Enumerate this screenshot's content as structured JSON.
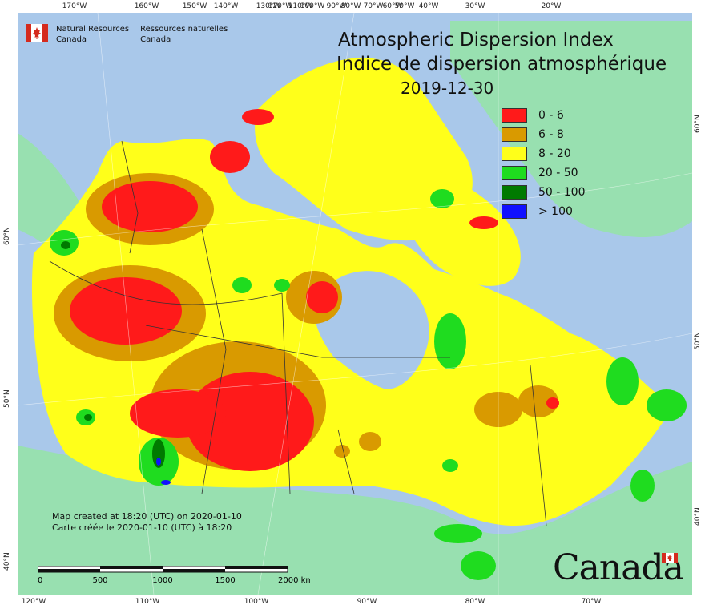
{
  "map": {
    "title_en": "Atmospheric Dispersion Index",
    "title_fr": "Indice de dispersion atmosphérique",
    "date": "2019-12-30",
    "legend": [
      {
        "label": "0 - 6",
        "color": "#ff1a1a"
      },
      {
        "label": "6 - 8",
        "color": "#d99a00"
      },
      {
        "label": "8 - 20",
        "color": "#ffff1a"
      },
      {
        "label": "20 - 50",
        "color": "#1fdc1f"
      },
      {
        "label": "50 - 100",
        "color": "#007a00"
      },
      {
        "label": "> 100",
        "color": "#1010ff"
      }
    ],
    "colors": {
      "water": "#a9c8ea",
      "foreign_land": "#98e0b0",
      "boundary": "#333333"
    },
    "agency_en": [
      "Natural Resources",
      "Canada"
    ],
    "agency_fr": [
      "Ressources naturelles",
      "Canada"
    ],
    "credit_en": "Map created at 18:20 (UTC) on 2020-01-10",
    "credit_fr": "Carte créée le 2020-01-10 (UTC) à 18:20",
    "wordmark": "Canada",
    "scale": {
      "labels": [
        "0",
        "500",
        "1000",
        "1500",
        "2000 km"
      ]
    },
    "top_ticks": [
      "170°W",
      "160°W",
      "150°W",
      "140°W",
      "130°W",
      "120°W",
      "110°W",
      "100°W",
      "90°W",
      "80°W",
      "70°W",
      "60°W",
      "50°W",
      "40°W",
      "30°W",
      "20°W"
    ],
    "bottom_ticks": [
      "120°W",
      "110°W",
      "100°W",
      "90°W",
      "80°W",
      "70°W"
    ],
    "left_ticks": [
      "60°N",
      "50°N",
      "40°N"
    ],
    "right_ticks": [
      "60°N",
      "50°N",
      "40°N"
    ]
  }
}
